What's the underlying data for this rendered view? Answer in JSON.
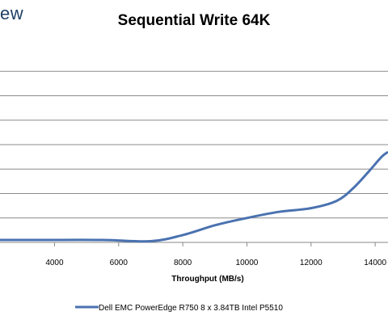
{
  "logo_fragment": "ew",
  "chart_data": {
    "type": "line",
    "title": "Sequential Write 64K",
    "xlabel": "Throughput (MB/s)",
    "ylabel": "",
    "xlim": [
      2300,
      14400
    ],
    "ylim": [
      0,
      8
    ],
    "x_ticks": [
      4000,
      6000,
      8000,
      10000,
      12000,
      14000
    ],
    "x_tick_labels": [
      "4000",
      "6000",
      "8000",
      "10000",
      "12000",
      "14000"
    ],
    "y_gridlines": [
      1,
      2,
      3,
      4,
      5,
      6,
      7
    ],
    "grid": "horizontal",
    "legend_position": "bottom",
    "series": [
      {
        "name": "Dell EMC PowerEdge R750 8 x 3.84TB Intel P5510",
        "color": "#4a72b0",
        "x": [
          2300,
          3500,
          5500,
          7000,
          8000,
          9000,
          10000,
          11000,
          12000,
          12800,
          13300,
          13800,
          14200,
          14400
        ],
        "y": [
          0.1,
          0.1,
          0.1,
          0.05,
          0.3,
          0.7,
          1.0,
          1.25,
          1.4,
          1.7,
          2.2,
          2.9,
          3.5,
          3.7
        ]
      }
    ]
  }
}
